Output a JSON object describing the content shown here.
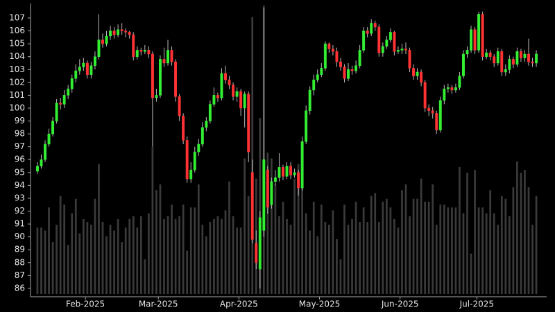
{
  "chart_data": {
    "type": "candlestick",
    "xlim": [
      -1.8,
      132.7
    ],
    "xticks": [
      {
        "value": 12.5,
        "label": "Feb-2025"
      },
      {
        "value": 31.5,
        "label": "Mar-2025"
      },
      {
        "value": 52.5,
        "label": "Apr-2025"
      },
      {
        "value": 73.5,
        "label": "May-2025"
      },
      {
        "value": 94.5,
        "label": "Jun-2025"
      },
      {
        "value": 114.5,
        "label": "Jul-2025"
      }
    ],
    "ylim": [
      85.35,
      108.13
    ],
    "yticks": [
      86,
      87,
      88,
      89,
      90,
      91,
      92,
      93,
      94,
      95,
      96,
      97,
      98,
      99,
      100,
      101,
      102,
      103,
      104,
      105,
      106,
      107
    ],
    "y2lim": [
      0,
      100
    ],
    "up_color": "#33ee33",
    "down_color": "#ff3333",
    "volume_color": "#3a3a3a",
    "open": [
      95.1,
      95.5,
      96.0,
      97.2,
      98.0,
      99.0,
      100.4,
      100.3,
      101.0,
      101.5,
      102.3,
      102.9,
      103.2,
      103.5,
      102.6,
      103.3,
      104.0,
      105.3,
      105.0,
      105.6,
      106.0,
      105.7,
      106.1,
      106.0,
      105.9,
      105.7,
      104.0,
      104.5,
      104.4,
      104.5,
      104.2,
      100.8,
      101.0,
      103.8,
      103.5,
      104.5,
      103.6,
      100.9,
      99.4,
      97.5,
      94.5,
      95.2,
      96.6,
      97.2,
      98.5,
      99.0,
      100.3,
      101.0,
      100.8,
      102.7,
      102.2,
      101.8,
      100.9,
      101.3,
      100.0,
      101.1,
      95.0,
      89.5,
      87.5,
      90.5,
      95.2,
      92.5,
      94.3,
      94.6,
      95.4,
      94.7,
      95.5,
      94.8,
      95.0,
      93.8,
      97.4,
      99.8,
      101.4,
      102.2,
      102.6,
      103.1,
      105.0,
      104.6,
      104.4,
      103.6,
      103.2,
      102.3,
      103.0,
      102.9,
      103.3,
      104.5,
      106.0,
      105.8,
      106.6,
      106.3,
      104.3,
      104.8,
      105.3,
      105.9,
      104.4,
      104.5,
      104.6,
      104.5,
      103.1,
      102.5,
      102.8,
      102.0,
      100.0,
      99.8,
      99.6,
      98.3,
      100.6,
      101.5,
      101.6,
      101.4,
      101.6,
      102.5,
      104.2,
      104.5,
      106.1,
      104.5,
      107.3,
      104.0,
      104.3,
      104.0,
      103.5,
      104.4,
      102.8,
      103.0,
      103.8,
      103.4,
      104.4,
      103.9,
      104.2,
      103.6,
      103.5
    ],
    "high": [
      95.8,
      96.4,
      97.5,
      98.4,
      99.3,
      100.7,
      100.8,
      101.4,
      101.8,
      102.6,
      103.4,
      103.8,
      103.9,
      103.7,
      103.6,
      104.4,
      107.3,
      105.8,
      106.0,
      106.4,
      106.3,
      106.5,
      106.6,
      106.2,
      106.0,
      105.9,
      104.8,
      104.7,
      104.9,
      104.8,
      104.4,
      101.5,
      104.1,
      104.7,
      105.3,
      104.8,
      103.8,
      101.1,
      99.6,
      97.8,
      95.8,
      97.0,
      97.6,
      98.9,
      99.3,
      100.6,
      101.6,
      101.2,
      103.1,
      103.3,
      102.5,
      102.0,
      101.6,
      101.5,
      101.3,
      101.3,
      96.0,
      90.5,
      92.0,
      107.8,
      95.5,
      94.6,
      95.2,
      96.5,
      95.6,
      95.8,
      95.8,
      95.3,
      95.2,
      97.8,
      100.2,
      101.7,
      102.6,
      103.0,
      103.5,
      105.2,
      105.1,
      104.9,
      104.7,
      103.9,
      103.4,
      103.5,
      103.3,
      103.7,
      104.9,
      106.3,
      106.3,
      106.9,
      106.8,
      106.5,
      105.1,
      105.6,
      106.2,
      106.0,
      104.8,
      105.0,
      105.1,
      104.7,
      103.4,
      103.1,
      103.0,
      102.2,
      100.3,
      100.1,
      99.8,
      100.9,
      101.8,
      101.9,
      101.8,
      101.9,
      102.8,
      104.5,
      104.8,
      106.4,
      106.3,
      107.5,
      107.5,
      104.6,
      104.5,
      104.2,
      104.7,
      104.6,
      103.4,
      104.1,
      104.0,
      104.7,
      104.6,
      104.5,
      105.4,
      103.9,
      104.5
    ],
    "low": [
      94.9,
      95.3,
      95.8,
      97.0,
      97.8,
      98.8,
      99.9,
      100.0,
      100.7,
      101.2,
      102.0,
      102.6,
      102.9,
      102.3,
      102.3,
      103.0,
      103.8,
      104.7,
      104.8,
      105.3,
      105.4,
      105.5,
      105.7,
      105.5,
      105.4,
      103.7,
      103.8,
      104.1,
      104.2,
      103.9,
      97.0,
      100.5,
      100.8,
      103.2,
      103.3,
      103.3,
      100.5,
      99.0,
      97.2,
      94.2,
      94.2,
      95.0,
      96.3,
      97.0,
      98.2,
      98.8,
      100.1,
      100.5,
      100.6,
      101.9,
      101.5,
      100.6,
      100.5,
      99.4,
      98.5,
      95.8,
      89.5,
      87.5,
      86.0,
      90.0,
      91.8,
      92.2,
      94.0,
      94.3,
      94.4,
      94.5,
      94.5,
      94.6,
      93.2,
      93.6,
      97.2,
      99.5,
      101.0,
      102.0,
      102.4,
      102.9,
      104.3,
      104.1,
      103.2,
      102.9,
      102.0,
      102.1,
      102.6,
      102.7,
      103.1,
      104.3,
      105.5,
      105.6,
      106.0,
      104.0,
      104.0,
      104.6,
      105.1,
      104.1,
      104.2,
      104.2,
      104.2,
      102.8,
      102.2,
      102.2,
      101.7,
      99.7,
      99.4,
      99.2,
      98.0,
      98.1,
      100.3,
      101.2,
      101.1,
      101.2,
      101.4,
      102.3,
      103.9,
      104.3,
      104.2,
      104.3,
      103.7,
      103.8,
      103.7,
      103.2,
      103.3,
      102.5,
      102.5,
      102.7,
      103.1,
      103.2,
      103.6,
      103.6,
      103.3,
      103.2,
      103.2
    ],
    "close": [
      95.5,
      96.0,
      97.2,
      98.0,
      99.0,
      100.4,
      100.3,
      101.0,
      101.5,
      102.3,
      102.9,
      103.2,
      103.5,
      102.6,
      103.3,
      104.0,
      105.3,
      105.0,
      105.6,
      106.0,
      105.7,
      106.1,
      106.0,
      105.9,
      105.7,
      104.0,
      104.5,
      104.4,
      104.5,
      104.2,
      100.8,
      101.0,
      103.8,
      103.5,
      104.5,
      103.6,
      100.9,
      99.4,
      97.5,
      94.5,
      95.2,
      96.6,
      97.2,
      98.5,
      99.0,
      100.3,
      101.0,
      100.8,
      102.7,
      102.2,
      101.8,
      100.9,
      101.3,
      100.0,
      101.1,
      96.6,
      89.8,
      88.0,
      91.5,
      96.0,
      92.3,
      94.3,
      94.6,
      95.4,
      94.7,
      95.5,
      94.8,
      95.0,
      93.8,
      97.4,
      99.8,
      101.4,
      102.2,
      102.6,
      103.1,
      105.0,
      104.6,
      104.4,
      103.6,
      103.2,
      102.3,
      103.0,
      102.9,
      103.3,
      104.5,
      106.0,
      105.8,
      106.6,
      106.3,
      104.3,
      104.8,
      105.3,
      105.9,
      104.4,
      104.5,
      104.6,
      104.5,
      103.1,
      102.5,
      102.8,
      102.0,
      100.0,
      99.8,
      99.6,
      98.3,
      100.6,
      101.5,
      101.6,
      101.4,
      101.6,
      102.5,
      104.2,
      104.5,
      106.1,
      104.5,
      107.3,
      104.0,
      104.3,
      104.0,
      103.5,
      104.4,
      102.8,
      103.0,
      103.8,
      103.4,
      104.4,
      103.9,
      104.2,
      103.6,
      103.5,
      104.2
    ],
    "volume": [
      23,
      23,
      22,
      30,
      18,
      24,
      34,
      31,
      17,
      28,
      33,
      21,
      26,
      25,
      24,
      33,
      45,
      25,
      20,
      24,
      22,
      26,
      18,
      23,
      26,
      27,
      23,
      27,
      12,
      28,
      51,
      36,
      38,
      26,
      27,
      31,
      26,
      27,
      31,
      15,
      30,
      30,
      38,
      24,
      20,
      25,
      26,
      27,
      26,
      29,
      39,
      27,
      23,
      23,
      47,
      34,
      96,
      40,
      61,
      100,
      49,
      47,
      38,
      27,
      32,
      26,
      24,
      40,
      45,
      53,
      28,
      22,
      32,
      20,
      31,
      25,
      24,
      29,
      19,
      12,
      31,
      24,
      26,
      32,
      25,
      30,
      25,
      34,
      35,
      25,
      32,
      33,
      30,
      26,
      23,
      36,
      38,
      27,
      33,
      33,
      40,
      32,
      32,
      38,
      24,
      31,
      31,
      30,
      30,
      30,
      44,
      28,
      42,
      14,
      43,
      30,
      30,
      28,
      36,
      28,
      24,
      34,
      33,
      27,
      37,
      46,
      42,
      43,
      37,
      24,
      34
    ]
  }
}
